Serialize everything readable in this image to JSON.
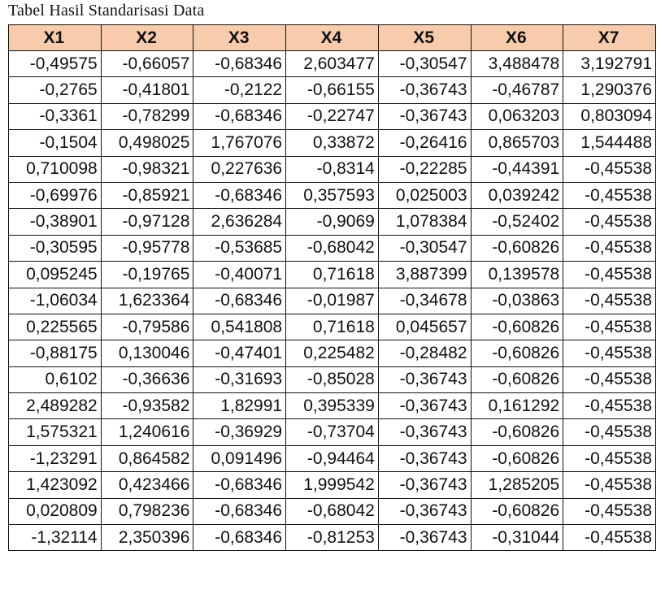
{
  "caption": "Tabel Hasil Standarisasi Data",
  "table": {
    "headers": [
      "X1",
      "X2",
      "X3",
      "X4",
      "X5",
      "X6",
      "X7"
    ],
    "rows": [
      [
        "-0,49575",
        "-0,66057",
        "-0,68346",
        "2,603477",
        "-0,30547",
        "3,488478",
        "3,192791"
      ],
      [
        "-0,2765",
        "-0,41801",
        "-0,2122",
        "-0,66155",
        "-0,36743",
        "-0,46787",
        "1,290376"
      ],
      [
        "-0,3361",
        "-0,78299",
        "-0,68346",
        "-0,22747",
        "-0,36743",
        "0,063203",
        "0,803094"
      ],
      [
        "-0,1504",
        "0,498025",
        "1,767076",
        "0,33872",
        "-0,26416",
        "0,865703",
        "1,544488"
      ],
      [
        "0,710098",
        "-0,98321",
        "0,227636",
        "-0,8314",
        "-0,22285",
        "-0,44391",
        "-0,45538"
      ],
      [
        "-0,69976",
        "-0,85921",
        "-0,68346",
        "0,357593",
        "0,025003",
        "0,039242",
        "-0,45538"
      ],
      [
        "-0,38901",
        "-0,97128",
        "2,636284",
        "-0,9069",
        "1,078384",
        "-0,52402",
        "-0,45538"
      ],
      [
        "-0,30595",
        "-0,95778",
        "-0,53685",
        "-0,68042",
        "-0,30547",
        "-0,60826",
        "-0,45538"
      ],
      [
        "0,095245",
        "-0,19765",
        "-0,40071",
        "0,71618",
        "3,887399",
        "0,139578",
        "-0,45538"
      ],
      [
        "-1,06034",
        "1,623364",
        "-0,68346",
        "-0,01987",
        "-0,34678",
        "-0,03863",
        "-0,45538"
      ],
      [
        "0,225565",
        "-0,79586",
        "0,541808",
        "0,71618",
        "0,045657",
        "-0,60826",
        "-0,45538"
      ],
      [
        "-0,88175",
        "0,130046",
        "-0,47401",
        "0,225482",
        "-0,28482",
        "-0,60826",
        "-0,45538"
      ],
      [
        "0,6102",
        "-0,36636",
        "-0,31693",
        "-0,85028",
        "-0,36743",
        "-0,60826",
        "-0,45538"
      ],
      [
        "2,489282",
        "-0,93582",
        "1,82991",
        "0,395339",
        "-0,36743",
        "0,161292",
        "-0,45538"
      ],
      [
        "1,575321",
        "1,240616",
        "-0,36929",
        "-0,73704",
        "-0,36743",
        "-0,60826",
        "-0,45538"
      ],
      [
        "-1,23291",
        "0,864582",
        "0,091496",
        "-0,94464",
        "-0,36743",
        "-0,60826",
        "-0,45538"
      ],
      [
        "1,423092",
        "0,423466",
        "-0,68346",
        "1,999542",
        "-0,36743",
        "1,285205",
        "-0,45538"
      ],
      [
        "0,020809",
        "0,798236",
        "-0,68346",
        "-0,68042",
        "-0,36743",
        "-0,60826",
        "-0,45538"
      ],
      [
        "-1,32114",
        "2,350396",
        "-0,68346",
        "-0,81253",
        "-0,36743",
        "-0,31044",
        "-0,45538"
      ]
    ]
  }
}
